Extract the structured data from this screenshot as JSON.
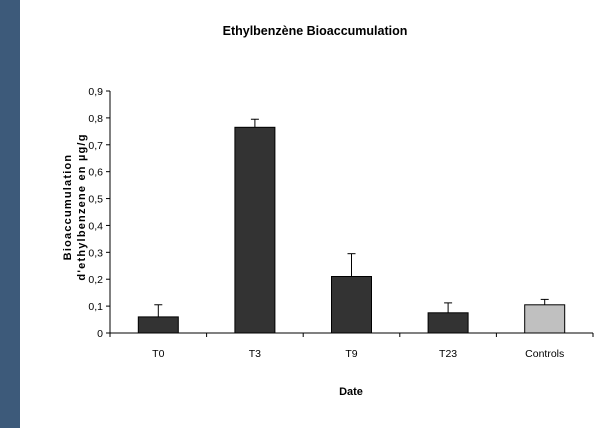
{
  "chart_data": {
    "type": "bar",
    "title": "Ethylbenzène Bioaccumulation",
    "xlabel": "Date",
    "ylabel_lines": [
      "Bioaccumulation",
      "d'ethylbenzene en µg/g"
    ],
    "categories": [
      "T0",
      "T3",
      "T9",
      "T23",
      "Controls"
    ],
    "values": [
      0.06,
      0.765,
      0.21,
      0.075,
      0.105
    ],
    "error_upper": [
      0.045,
      0.03,
      0.085,
      0.037,
      0.02
    ],
    "bar_colors": [
      "#333333",
      "#333333",
      "#333333",
      "#333333",
      "#c0c0c0"
    ],
    "ylim": [
      0,
      0.9
    ],
    "yticks": [
      "0",
      "0,1",
      "0,2",
      "0,3",
      "0,4",
      "0,5",
      "0,6",
      "0,7",
      "0,8",
      "0,9"
    ],
    "grid": false,
    "legend": "none"
  }
}
